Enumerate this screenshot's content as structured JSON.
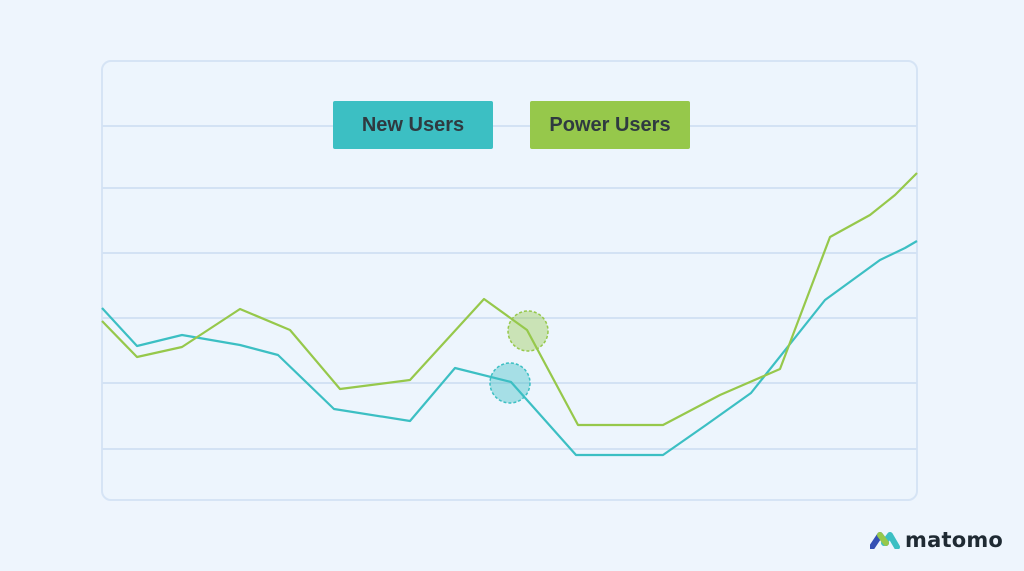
{
  "chart_data": {
    "type": "line",
    "title": "",
    "xlabel": "",
    "ylabel": "",
    "grid": true,
    "legend_placement": "top-center",
    "ylim": [
      0,
      100
    ],
    "x": [
      0,
      1,
      2,
      3,
      4,
      5,
      6,
      7,
      8,
      9,
      10,
      11,
      12,
      13,
      14,
      15,
      16,
      17
    ],
    "series": [
      {
        "name": "New Users",
        "color": "#3cbfc3",
        "values": [
          59,
          50,
          52,
          50,
          48,
          37,
          35,
          45,
          43,
          34,
          34,
          34,
          38,
          43,
          56,
          60,
          63,
          64
        ],
        "x_override": [
          0,
          0.78,
          1.8,
          3.0,
          3.9,
          5.2,
          6.8,
          7.9,
          9.1,
          10.6,
          11.4,
          12.6,
          13.8,
          14.8,
          16.0,
          16.9,
          17.6,
          18.0
        ]
      },
      {
        "name": "Power Users",
        "color": "#96c84b",
        "values": [
          57,
          49,
          51,
          58,
          54,
          41,
          42,
          58,
          55,
          36,
          36,
          36,
          43,
          57,
          60,
          64,
          68,
          72
        ]
      }
    ],
    "highlights": [
      {
        "series": "New Users",
        "color": "#3cbfc3"
      },
      {
        "series": "Power Users",
        "color": "#96c84b"
      }
    ]
  },
  "legend": {
    "new_users": {
      "label": "New Users",
      "color": "#3cbfc3"
    },
    "power_users": {
      "label": "Power Users",
      "color": "#96c84b"
    }
  },
  "logo": {
    "text": "matomo",
    "icon": "matomo-logo-icon"
  }
}
